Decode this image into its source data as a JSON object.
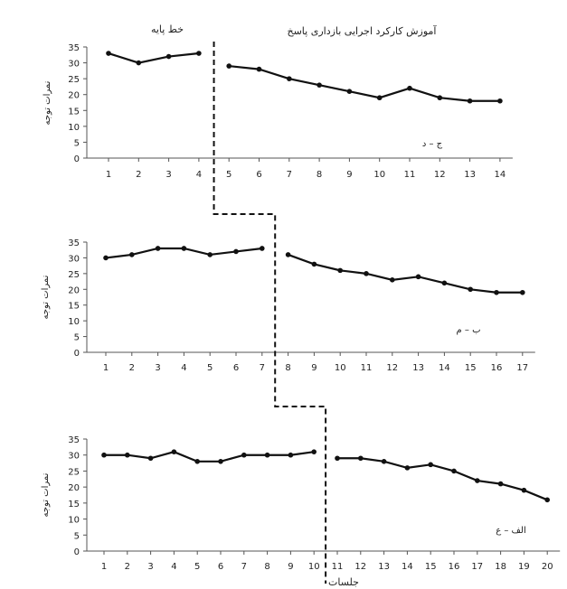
{
  "figure": {
    "phase_labels": {
      "baseline": "خط پایه",
      "intervention": "آموزش کارکرد اجرایی بازداری پاسخ"
    },
    "xlabel": "جلسات",
    "colors": {
      "line": "#111111",
      "axis": "#555555",
      "divider": "#111111"
    }
  },
  "chart_data": [
    {
      "type": "line",
      "panel_label": "ج – د",
      "ylabel": "نمرات توجه",
      "ylim": [
        0,
        35
      ],
      "yticks": [
        0,
        5,
        10,
        15,
        20,
        25,
        30,
        35
      ],
      "x": [
        1,
        2,
        3,
        4,
        5,
        6,
        7,
        8,
        9,
        10,
        11,
        12,
        13,
        14
      ],
      "baseline_sessions": 4,
      "baseline": [
        33,
        30,
        32,
        33
      ],
      "intervention": [
        29,
        28,
        25,
        23,
        21,
        19,
        22,
        19,
        18,
        18
      ]
    },
    {
      "type": "line",
      "panel_label": "ب – م",
      "ylabel": "نمرات توجه",
      "ylim": [
        0,
        35
      ],
      "yticks": [
        0,
        5,
        10,
        15,
        20,
        25,
        30,
        35
      ],
      "x": [
        1,
        2,
        3,
        4,
        5,
        6,
        7,
        8,
        9,
        10,
        11,
        12,
        13,
        14,
        15,
        16,
        17
      ],
      "baseline_sessions": 7,
      "baseline": [
        30,
        31,
        33,
        33,
        31,
        32,
        33
      ],
      "intervention": [
        31,
        28,
        26,
        25,
        23,
        24,
        22,
        20,
        19,
        19
      ]
    },
    {
      "type": "line",
      "panel_label": "الف – ع",
      "ylabel": "نمرات توجه",
      "ylim": [
        0,
        35
      ],
      "yticks": [
        0,
        5,
        10,
        15,
        20,
        25,
        30,
        35
      ],
      "x": [
        1,
        2,
        3,
        4,
        5,
        6,
        7,
        8,
        9,
        10,
        11,
        12,
        13,
        14,
        15,
        16,
        17,
        18,
        19,
        20
      ],
      "baseline_sessions": 10,
      "baseline": [
        30,
        30,
        29,
        31,
        28,
        28,
        30,
        30,
        30,
        31
      ],
      "intervention": [
        29,
        29,
        28,
        26,
        27,
        25,
        22,
        21,
        19,
        16
      ]
    }
  ]
}
